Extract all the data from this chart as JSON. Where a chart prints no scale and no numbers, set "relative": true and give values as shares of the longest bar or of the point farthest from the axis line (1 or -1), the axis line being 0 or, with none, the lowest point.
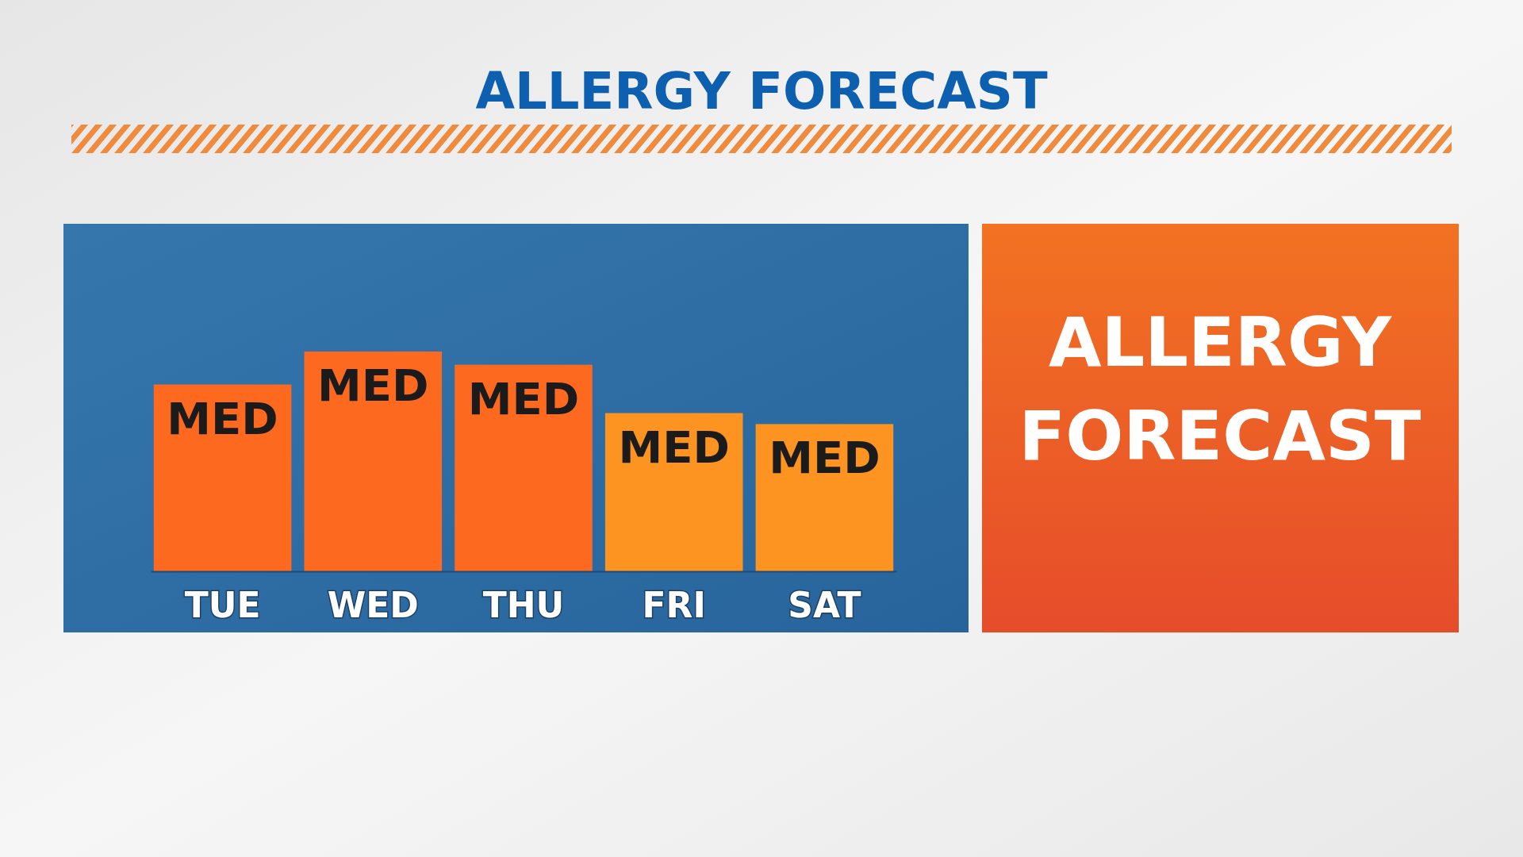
{
  "chart_data": [
    {
      "type": "bar",
      "title": "ALLERGY FORECAST",
      "relative": true,
      "categories": [
        "TUE",
        "WED",
        "THU",
        "FRI",
        "SAT"
      ],
      "values": [
        0.85,
        1,
        0.94,
        0.72,
        0.67
      ],
      "colors": [
        "#fd6a1f",
        "#fd6a1f",
        "#fd6a1f",
        "#fd9321",
        "#fd9321"
      ],
      "annotations": [
        {
          "text": "MED",
          "x": "TUE",
          "y": 0.85
        },
        {
          "text": "MED",
          "x": "WED",
          "y": 1
        },
        {
          "text": "MED",
          "x": "THU",
          "y": 0.94
        },
        {
          "text": "MED",
          "x": "FRI",
          "y": 0.72
        },
        {
          "text": "MED",
          "x": "SAT",
          "y": 0.67
        }
      ]
    },
    {
      "type": "other",
      "title": "ALLERGY FORECAST"
    }
  ]
}
